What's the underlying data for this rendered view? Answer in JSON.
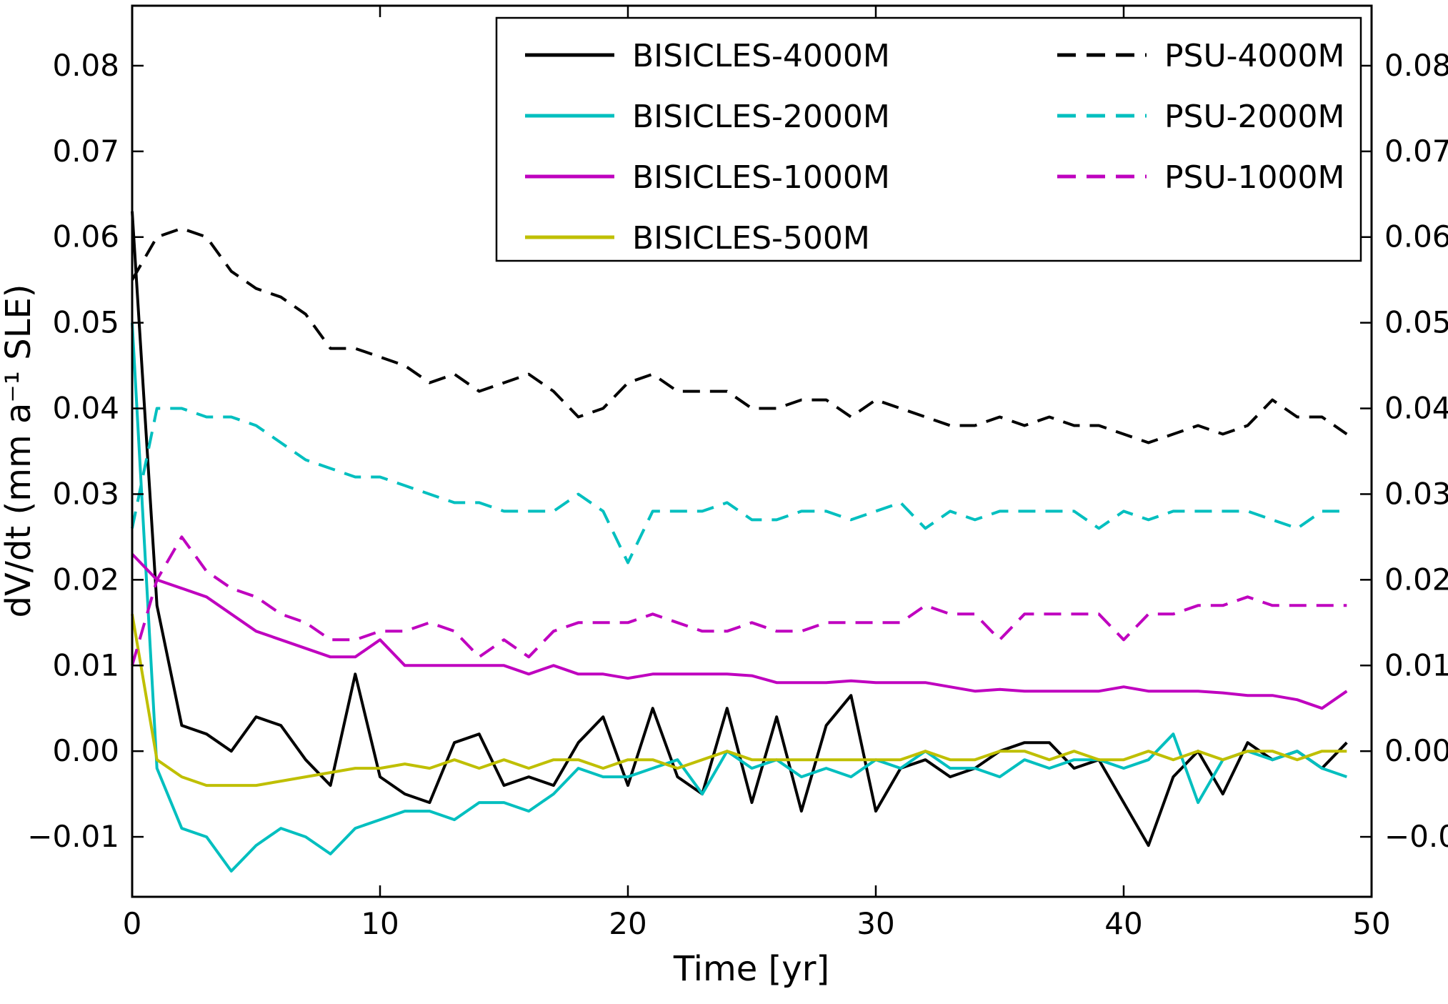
{
  "chart_data": {
    "type": "line",
    "title": "",
    "xlabel": "Time [yr]",
    "ylabel": "dV/dt (mm a⁻¹ SLE)",
    "xlim": [
      0,
      50
    ],
    "ylim": [
      -0.017,
      0.087
    ],
    "xticks": [
      0,
      10,
      20,
      30,
      40,
      50
    ],
    "yticks": [
      -0.01,
      0,
      0.01,
      0.02,
      0.03,
      0.04,
      0.05,
      0.06,
      0.07,
      0.08
    ],
    "grid": false,
    "legend_position": "upper center",
    "legend_columns": 2,
    "axis_color": "#000000",
    "x": [
      0,
      1,
      2,
      3,
      4,
      5,
      6,
      7,
      8,
      9,
      10,
      11,
      12,
      13,
      14,
      15,
      16,
      17,
      18,
      19,
      20,
      21,
      22,
      23,
      24,
      25,
      26,
      27,
      28,
      29,
      30,
      31,
      32,
      33,
      34,
      35,
      36,
      37,
      38,
      39,
      40,
      41,
      42,
      43,
      44,
      45,
      46,
      47,
      48,
      49
    ],
    "series": [
      {
        "name": "BISICLES-4000M",
        "color": "#000000",
        "style": "solid",
        "values": [
          0.063,
          0.017,
          0.003,
          0.002,
          0.0,
          0.004,
          0.003,
          -0.001,
          -0.004,
          0.009,
          -0.003,
          -0.005,
          -0.006,
          0.001,
          0.002,
          -0.004,
          -0.003,
          -0.004,
          0.001,
          0.004,
          -0.004,
          0.005,
          -0.003,
          -0.005,
          0.005,
          -0.006,
          0.004,
          -0.007,
          0.003,
          0.0065,
          -0.007,
          -0.002,
          -0.001,
          -0.003,
          -0.002,
          0.0,
          0.001,
          0.001,
          -0.002,
          -0.001,
          -0.006,
          -0.011,
          -0.003,
          0.0,
          -0.005,
          0.001,
          -0.001,
          0.0,
          -0.002,
          0.001
        ]
      },
      {
        "name": "BISICLES-2000M",
        "color": "#00bfbf",
        "style": "solid",
        "values": [
          0.05,
          -0.002,
          -0.009,
          -0.01,
          -0.014,
          -0.011,
          -0.009,
          -0.01,
          -0.012,
          -0.009,
          -0.008,
          -0.007,
          -0.007,
          -0.008,
          -0.006,
          -0.006,
          -0.007,
          -0.005,
          -0.002,
          -0.003,
          -0.003,
          -0.002,
          -0.001,
          -0.005,
          0.0,
          -0.002,
          -0.001,
          -0.003,
          -0.002,
          -0.003,
          -0.001,
          -0.002,
          0.0,
          -0.002,
          -0.002,
          -0.003,
          -0.001,
          -0.002,
          -0.001,
          -0.001,
          -0.002,
          -0.001,
          0.002,
          -0.006,
          -0.001,
          0.0,
          -0.001,
          0.0,
          -0.002,
          -0.003
        ]
      },
      {
        "name": "BISICLES-1000M",
        "color": "#bf00bf",
        "style": "solid",
        "values": [
          0.023,
          0.02,
          0.019,
          0.018,
          0.016,
          0.014,
          0.013,
          0.012,
          0.011,
          0.011,
          0.013,
          0.01,
          0.01,
          0.01,
          0.01,
          0.01,
          0.009,
          0.01,
          0.009,
          0.009,
          0.0085,
          0.009,
          0.009,
          0.009,
          0.009,
          0.0088,
          0.008,
          0.008,
          0.008,
          0.0082,
          0.008,
          0.008,
          0.008,
          0.0075,
          0.007,
          0.0072,
          0.007,
          0.007,
          0.007,
          0.007,
          0.0075,
          0.007,
          0.007,
          0.007,
          0.0068,
          0.0065,
          0.0065,
          0.006,
          0.005,
          0.007
        ]
      },
      {
        "name": "BISICLES-500M",
        "color": "#bfbf00",
        "style": "solid",
        "values": [
          0.016,
          -0.001,
          -0.003,
          -0.004,
          -0.004,
          -0.004,
          -0.0035,
          -0.003,
          -0.0025,
          -0.002,
          -0.002,
          -0.0015,
          -0.002,
          -0.001,
          -0.002,
          -0.001,
          -0.002,
          -0.001,
          -0.001,
          -0.002,
          -0.001,
          -0.001,
          -0.002,
          -0.001,
          0.0,
          -0.001,
          -0.001,
          -0.001,
          -0.001,
          -0.001,
          -0.001,
          -0.001,
          0.0,
          -0.001,
          -0.001,
          0.0,
          0.0,
          -0.001,
          0.0,
          -0.001,
          -0.001,
          0.0,
          -0.001,
          0.0,
          -0.001,
          0.0,
          0.0,
          -0.001,
          0.0,
          0.0
        ]
      },
      {
        "name": "PSU-4000M",
        "color": "#000000",
        "style": "dashed",
        "values": [
          0.055,
          0.06,
          0.061,
          0.06,
          0.056,
          0.054,
          0.053,
          0.051,
          0.047,
          0.047,
          0.046,
          0.045,
          0.043,
          0.044,
          0.042,
          0.043,
          0.044,
          0.042,
          0.039,
          0.04,
          0.043,
          0.044,
          0.042,
          0.042,
          0.042,
          0.04,
          0.04,
          0.041,
          0.041,
          0.039,
          0.041,
          0.04,
          0.039,
          0.038,
          0.038,
          0.039,
          0.038,
          0.039,
          0.038,
          0.038,
          0.037,
          0.036,
          0.037,
          0.038,
          0.037,
          0.038,
          0.041,
          0.039,
          0.039,
          0.037
        ]
      },
      {
        "name": "PSU-2000M",
        "color": "#00bfbf",
        "style": "dashed",
        "values": [
          0.026,
          0.04,
          0.04,
          0.039,
          0.039,
          0.038,
          0.036,
          0.034,
          0.033,
          0.032,
          0.032,
          0.031,
          0.03,
          0.029,
          0.029,
          0.028,
          0.028,
          0.028,
          0.03,
          0.028,
          0.022,
          0.028,
          0.028,
          0.028,
          0.029,
          0.027,
          0.027,
          0.028,
          0.028,
          0.027,
          0.028,
          0.029,
          0.026,
          0.028,
          0.027,
          0.028,
          0.028,
          0.028,
          0.028,
          0.026,
          0.028,
          0.027,
          0.028,
          0.028,
          0.028,
          0.028,
          0.027,
          0.026,
          0.028,
          0.028
        ]
      },
      {
        "name": "PSU-1000M",
        "color": "#bf00bf",
        "style": "dashed",
        "values": [
          0.01,
          0.02,
          0.025,
          0.021,
          0.019,
          0.018,
          0.016,
          0.015,
          0.013,
          0.013,
          0.014,
          0.014,
          0.015,
          0.014,
          0.011,
          0.013,
          0.011,
          0.014,
          0.015,
          0.015,
          0.015,
          0.016,
          0.015,
          0.014,
          0.014,
          0.015,
          0.014,
          0.014,
          0.015,
          0.015,
          0.015,
          0.015,
          0.017,
          0.016,
          0.016,
          0.013,
          0.016,
          0.016,
          0.016,
          0.016,
          0.013,
          0.016,
          0.016,
          0.017,
          0.017,
          0.018,
          0.017,
          0.017,
          0.017,
          0.017
        ]
      }
    ],
    "legend": {
      "column1": [
        "BISICLES-4000M",
        "BISICLES-2000M",
        "BISICLES-1000M",
        "BISICLES-500M"
      ],
      "column2": [
        "PSU-4000M",
        "PSU-2000M",
        "PSU-1000M"
      ]
    }
  }
}
